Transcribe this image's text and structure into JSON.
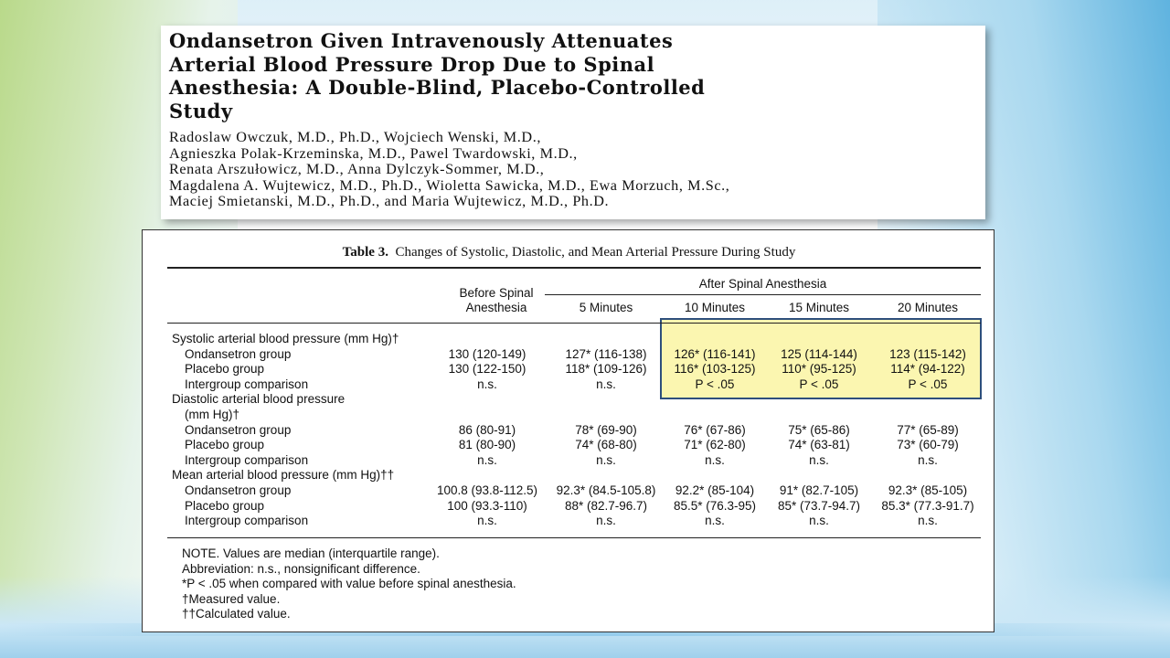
{
  "paper": {
    "title_lines": [
      "Ondansetron Given Intravenously Attenuates",
      "Arterial Blood Pressure Drop Due to Spinal",
      "Anesthesia: A Double-Blind, Placebo-Controlled",
      "Study"
    ],
    "author_lines": [
      "Radoslaw Owczuk, M.D., Ph.D., Wojciech Wenski, M.D.,",
      "Agnieszka Polak-Krzeminska, M.D., Pawel Twardowski, M.D.,",
      "Renata Arszułowicz, M.D., Anna Dylczyk-Sommer, M.D.,",
      "Magdalena A. Wujtewicz, M.D., Ph.D., Wioletta Sawicka, M.D., Ewa Morzuch, M.Sc.,",
      "Maciej Smietanski, M.D., Ph.D., and Maria Wujtewicz, M.D., Ph.D."
    ]
  },
  "table": {
    "caption_label": "Table 3.",
    "caption_text": "Changes of Systolic, Diastolic, and Mean Arterial Pressure During Study",
    "header_before_line1": "Before Spinal",
    "header_before_line2": "Anesthesia",
    "header_after": "After Spinal Anesthesia",
    "columns": [
      "5 Minutes",
      "10 Minutes",
      "15 Minutes",
      "20 Minutes"
    ],
    "rows": [
      {
        "label": "Systolic arterial blood pressure (mm Hg)†",
        "indent": false,
        "values": [
          "",
          "",
          "",
          "",
          ""
        ]
      },
      {
        "label": "Ondansetron group",
        "indent": true,
        "values": [
          "130 (120-149)",
          "127* (116-138)",
          "126* (116-141)",
          "125 (114-144)",
          "123 (115-142)"
        ]
      },
      {
        "label": "Placebo group",
        "indent": true,
        "values": [
          "130 (122-150)",
          "118* (109-126)",
          "116* (103-125)",
          "110* (95-125)",
          "114* (94-122)"
        ]
      },
      {
        "label": "Intergroup comparison",
        "indent": true,
        "values": [
          "n.s.",
          "n.s.",
          "P < .05",
          "P < .05",
          "P < .05"
        ]
      },
      {
        "label": "Diastolic arterial blood pressure",
        "indent": false,
        "values": [
          "",
          "",
          "",
          "",
          ""
        ]
      },
      {
        "label": "(mm Hg)†",
        "indent": true,
        "values": [
          "",
          "",
          "",
          "",
          ""
        ]
      },
      {
        "label": "Ondansetron group",
        "indent": true,
        "values": [
          "86 (80-91)",
          "78* (69-90)",
          "76* (67-86)",
          "75* (65-86)",
          "77* (65-89)"
        ]
      },
      {
        "label": "Placebo group",
        "indent": true,
        "values": [
          "81 (80-90)",
          "74* (68-80)",
          "71* (62-80)",
          "74* (63-81)",
          "73* (60-79)"
        ]
      },
      {
        "label": "Intergroup comparison",
        "indent": true,
        "values": [
          "n.s.",
          "n.s.",
          "n.s.",
          "n.s.",
          "n.s."
        ]
      },
      {
        "label": "Mean arterial blood pressure (mm Hg)††",
        "indent": false,
        "values": [
          "",
          "",
          "",
          "",
          ""
        ]
      },
      {
        "label": "Ondansetron group",
        "indent": true,
        "values": [
          "100.8 (93.8-112.5)",
          "92.3* (84.5-105.8)",
          "92.2* (85-104)",
          "91* (82.7-105)",
          "92.3* (85-105)"
        ]
      },
      {
        "label": "Placebo group",
        "indent": true,
        "values": [
          "100 (93.3-110)",
          "88* (82.7-96.7)",
          "85.5* (76.3-95)",
          "85* (73.7-94.7)",
          "85.3* (77.3-91.7)"
        ]
      },
      {
        "label": "Intergroup comparison",
        "indent": true,
        "values": [
          "n.s.",
          "n.s.",
          "n.s.",
          "n.s.",
          "n.s."
        ]
      }
    ],
    "notes": [
      "NOTE. Values are median (interquartile range).",
      "Abbreviation: n.s., nonsignificant difference.",
      "*P < .05 when compared with value before spinal anesthesia.",
      "†Measured value.",
      "††Calculated value."
    ]
  },
  "colors": {
    "highlight_fill": "#fbf6b0",
    "highlight_border": "#2e4f7c"
  }
}
